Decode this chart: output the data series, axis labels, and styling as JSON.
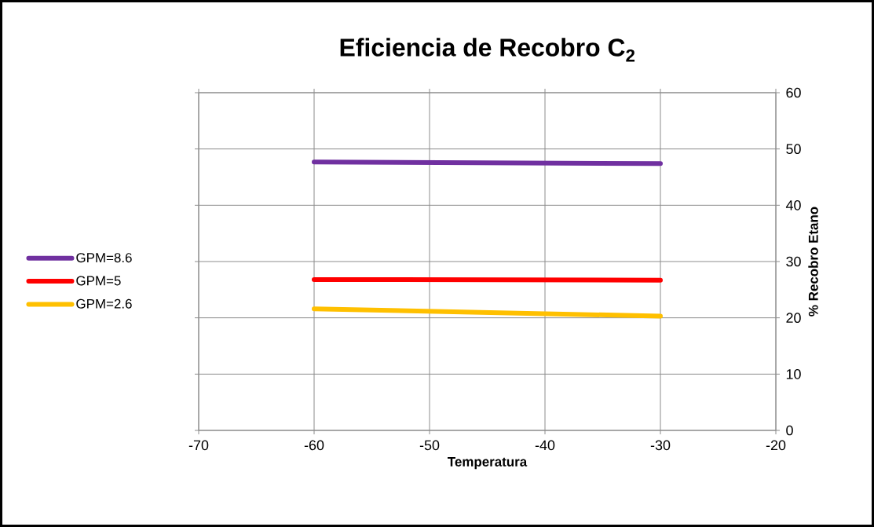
{
  "chart_data": {
    "type": "line",
    "title": "Eficiencia de Recobro C$_{2}$",
    "xlabel": "Temperatura",
    "ylabel": "% Recobro Etano",
    "x": [
      -60,
      -30
    ],
    "series": [
      {
        "name": "GPM=8.6",
        "color": "#7030a0",
        "values": [
          47.7,
          47.4
        ]
      },
      {
        "name": "GPM=5",
        "color": "#ff0000",
        "values": [
          26.8,
          26.7
        ]
      },
      {
        "name": "GPM=2.6",
        "color": "#ffc000",
        "values": [
          21.6,
          20.3
        ]
      }
    ],
    "xlim": [
      -70,
      -20
    ],
    "xticks": [
      -70,
      -60,
      -50,
      -40,
      -30,
      -20
    ],
    "ylim": [
      0,
      60
    ],
    "yticks": [
      0,
      10,
      20,
      30,
      40,
      50,
      60
    ],
    "grid": true,
    "legend": "left",
    "marker": "none",
    "line_style": "solid"
  }
}
